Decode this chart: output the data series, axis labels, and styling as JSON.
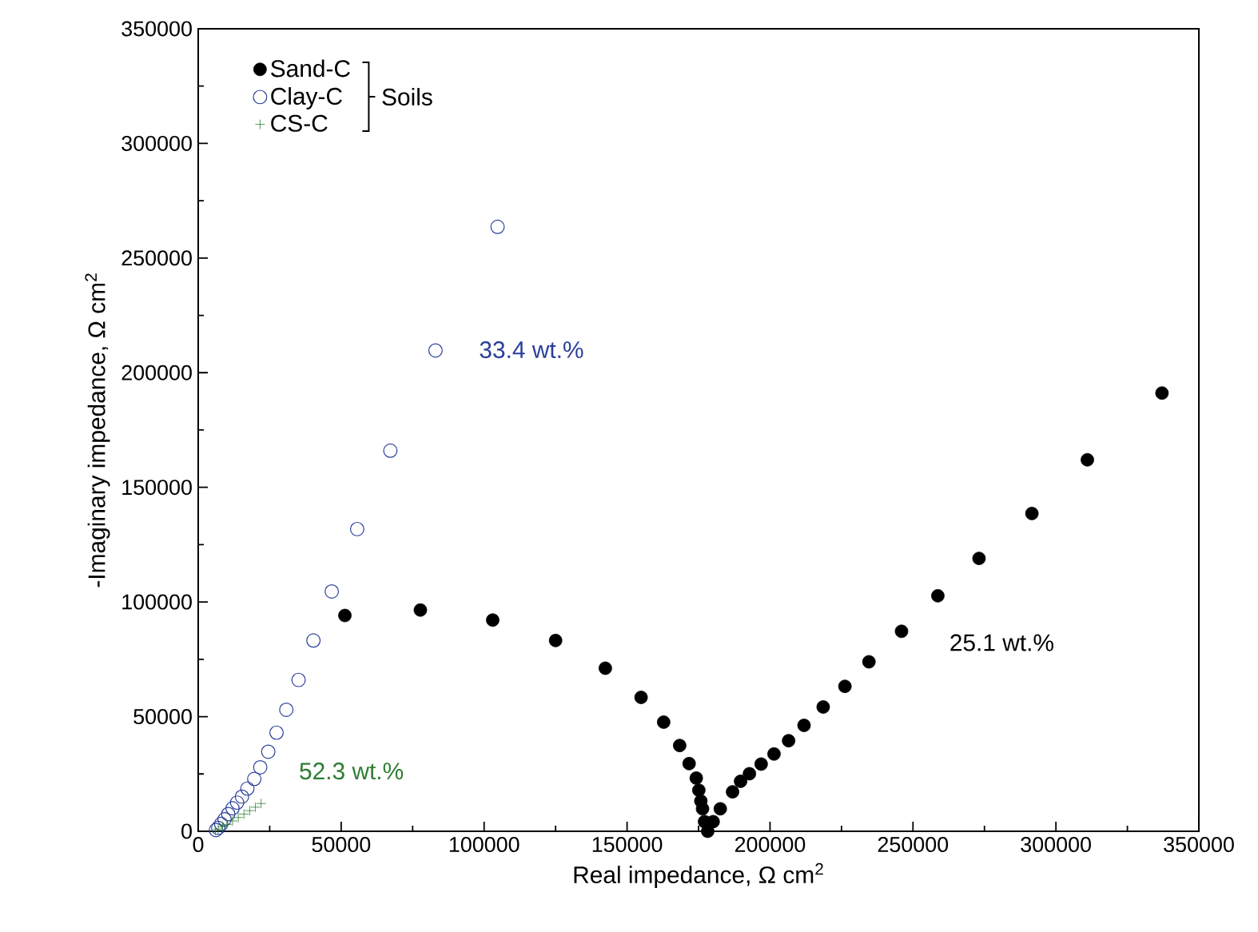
{
  "chart_data": {
    "type": "scatter",
    "xlabel": "Real impedance, Ω cm$^{2}$",
    "ylabel": "-Imaginary impedance, Ω cm$^{2}$",
    "legend_title": "Soils",
    "legend": "top left",
    "grid": false,
    "xlim": [
      0,
      350000
    ],
    "ylim": [
      0,
      350000
    ],
    "xticks": [
      0,
      50000,
      100000,
      150000,
      200000,
      250000,
      300000,
      350000
    ],
    "yticks": [
      0,
      50000,
      100000,
      150000,
      200000,
      250000,
      300000,
      350000
    ],
    "annotations": [
      "25.1 wt.%",
      "33.4 wt.%",
      "52.3 wt.%"
    ],
    "series": [
      {
        "name": "Sand-C",
        "color": "#000000",
        "marker": "circle",
        "x": [
          51300,
          77700,
          103000,
          125000,
          142400,
          154900,
          162800,
          168400,
          171700,
          174200,
          175100,
          175800,
          176400,
          177100,
          178200,
          180100,
          182600,
          186900,
          189700,
          192800,
          196900,
          201400,
          206500,
          211900,
          218600,
          226200,
          234600,
          246000,
          258700,
          273100,
          291600,
          311000,
          337100
        ],
        "values": [
          94100,
          96500,
          92100,
          83200,
          71100,
          58400,
          47600,
          37400,
          29500,
          23200,
          17900,
          13200,
          9800,
          4200,
          0,
          4200,
          9800,
          17200,
          21800,
          25100,
          29300,
          33700,
          39500,
          46200,
          54200,
          63200,
          73900,
          87200,
          102700,
          119000,
          138600,
          162000,
          191100
        ]
      },
      {
        "name": "Clay-C",
        "color": "#2a3f9a",
        "marker": "circle_open",
        "x": [
          6200,
          7000,
          8000,
          9200,
          10500,
          12000,
          13600,
          15300,
          17200,
          19600,
          21700,
          24500,
          27400,
          30800,
          35100,
          40300,
          46700,
          55600,
          67200,
          83000,
          104700
        ],
        "values": [
          500,
          1500,
          3200,
          5200,
          7500,
          10000,
          12500,
          15100,
          18600,
          22800,
          27900,
          34700,
          43000,
          53000,
          66000,
          83200,
          104600,
          131800,
          166000,
          209700,
          263600
        ]
      },
      {
        "name": "CS-C",
        "color": "#2e7d32",
        "marker": "cross",
        "x": [
          6000,
          7000,
          8500,
          10000,
          12000,
          14000,
          16000,
          18000,
          20000,
          22000
        ],
        "values": [
          300,
          1000,
          2000,
          3000,
          4500,
          6000,
          7500,
          9000,
          10500,
          12100
        ]
      }
    ]
  }
}
